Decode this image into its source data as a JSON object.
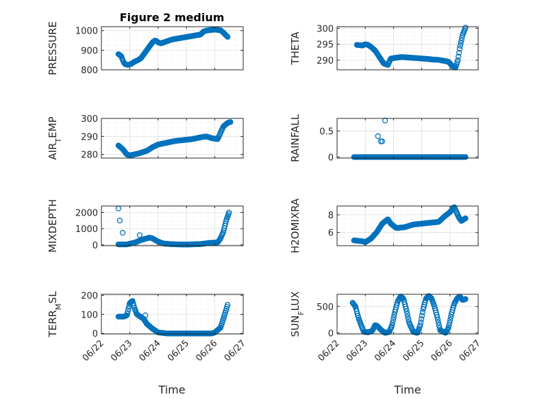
{
  "figure_title": "Figure 2 medium",
  "xlabel": "Time",
  "x_ticks": [
    "06/22",
    "06/23",
    "06/24",
    "06/25",
    "06/26",
    "06/27"
  ],
  "marker_color": "#0072bd",
  "chart_data": [
    {
      "type": "scatter",
      "ylabel": "PRESSURE",
      "ylim": [
        800,
        1020
      ],
      "y_ticks": [
        800,
        900,
        1000
      ],
      "grid": true,
      "minor_grid": true,
      "keys": [
        [
          22.6,
          880
        ],
        [
          22.7,
          870
        ],
        [
          22.75,
          850
        ],
        [
          22.8,
          835
        ],
        [
          22.85,
          828
        ],
        [
          22.95,
          825
        ],
        [
          23.05,
          830
        ],
        [
          23.15,
          840
        ],
        [
          23.3,
          850
        ],
        [
          23.4,
          860
        ],
        [
          23.5,
          880
        ],
        [
          23.6,
          900
        ],
        [
          23.7,
          920
        ],
        [
          23.8,
          940
        ],
        [
          23.9,
          950
        ],
        [
          24.0,
          940
        ],
        [
          24.1,
          935
        ],
        [
          24.3,
          945
        ],
        [
          24.5,
          955
        ],
        [
          24.7,
          960
        ],
        [
          24.9,
          965
        ],
        [
          25.1,
          970
        ],
        [
          25.3,
          975
        ],
        [
          25.5,
          980
        ],
        [
          25.6,
          995
        ],
        [
          25.7,
          1000
        ],
        [
          25.85,
          1003
        ],
        [
          26.0,
          1005
        ],
        [
          26.2,
          1002
        ],
        [
          26.3,
          990
        ],
        [
          26.4,
          975
        ],
        [
          26.45,
          968
        ]
      ]
    },
    {
      "type": "scatter",
      "ylabel": "THETA",
      "ylim": [
        287,
        300.5
      ],
      "y_ticks": [
        290,
        295,
        300
      ],
      "grid": true,
      "minor_grid": true,
      "keys": [
        [
          22.7,
          294.8
        ],
        [
          22.9,
          294.6
        ],
        [
          23.0,
          295
        ],
        [
          23.1,
          294.8
        ],
        [
          23.2,
          294.2
        ],
        [
          23.35,
          293
        ],
        [
          23.5,
          291
        ],
        [
          23.65,
          289
        ],
        [
          23.8,
          288.5
        ],
        [
          23.9,
          290.5
        ],
        [
          24.1,
          290.8
        ],
        [
          24.3,
          291.0
        ],
        [
          24.6,
          290.8
        ],
        [
          24.9,
          290.6
        ],
        [
          25.2,
          290.4
        ],
        [
          25.4,
          290.2
        ],
        [
          25.6,
          290.1
        ],
        [
          25.8,
          289.8
        ],
        [
          25.95,
          289.5
        ],
        [
          26.1,
          288.0
        ],
        [
          26.2,
          287.7
        ],
        [
          26.28,
          290
        ],
        [
          26.35,
          294
        ],
        [
          26.45,
          298
        ],
        [
          26.55,
          300.2
        ]
      ]
    },
    {
      "type": "scatter",
      "ylabel": "AIR_TEMP",
      "ylim": [
        278,
        300
      ],
      "y_ticks": [
        280,
        290,
        300
      ],
      "grid": true,
      "minor_grid": true,
      "keys": [
        [
          22.6,
          285
        ],
        [
          22.75,
          283
        ],
        [
          22.9,
          280
        ],
        [
          23.0,
          279.5
        ],
        [
          23.3,
          280.5
        ],
        [
          23.6,
          282
        ],
        [
          23.8,
          284
        ],
        [
          24.0,
          285.5
        ],
        [
          24.3,
          286.5
        ],
        [
          24.6,
          287.5
        ],
        [
          24.9,
          288
        ],
        [
          25.2,
          288.5
        ],
        [
          25.5,
          289.5
        ],
        [
          25.7,
          290
        ],
        [
          25.9,
          289
        ],
        [
          26.1,
          288.5
        ],
        [
          26.2,
          292
        ],
        [
          26.3,
          295.5
        ],
        [
          26.45,
          297.5
        ],
        [
          26.55,
          298
        ]
      ]
    },
    {
      "type": "scatter",
      "ylabel": "RAINFALL",
      "ylim": [
        -0.02,
        0.74
      ],
      "y_ticks": [
        0,
        0.5
      ],
      "grid": true,
      "minor_grid": false,
      "keys": [
        [
          22.6,
          0
        ],
        [
          26.55,
          0
        ]
      ],
      "extra_points": [
        [
          23.45,
          0.4
        ],
        [
          23.55,
          0.3
        ],
        [
          23.6,
          0.3
        ],
        [
          23.7,
          0.7
        ]
      ]
    },
    {
      "type": "scatter",
      "ylabel": "MIXDEPTH",
      "ylim": [
        -50,
        2400
      ],
      "y_ticks": [
        0,
        1000,
        2000
      ],
      "grid": true,
      "minor_grid": true,
      "keys": [
        [
          22.6,
          30
        ],
        [
          22.9,
          30
        ],
        [
          23.2,
          150
        ],
        [
          23.4,
          300
        ],
        [
          23.6,
          400
        ],
        [
          23.7,
          450
        ],
        [
          23.8,
          400
        ],
        [
          24.0,
          200
        ],
        [
          24.2,
          80
        ],
        [
          24.5,
          40
        ],
        [
          25.0,
          20
        ],
        [
          25.5,
          50
        ],
        [
          25.8,
          120
        ],
        [
          26.1,
          150
        ],
        [
          26.2,
          400
        ],
        [
          26.3,
          800
        ],
        [
          26.4,
          1500
        ],
        [
          26.5,
          2000
        ]
      ],
      "extra_points": [
        [
          22.6,
          2250
        ],
        [
          22.65,
          1500
        ],
        [
          22.75,
          750
        ],
        [
          23.35,
          600
        ],
        [
          23.5,
          350
        ]
      ]
    },
    {
      "type": "scatter",
      "ylabel": "H2OMIXRA",
      "ylim": [
        4.5,
        9
      ],
      "y_ticks": [
        6,
        8
      ],
      "grid": true,
      "minor_grid": true,
      "keys": [
        [
          22.6,
          5.1
        ],
        [
          22.9,
          5.0
        ],
        [
          23.0,
          4.9
        ],
        [
          23.2,
          5.3
        ],
        [
          23.4,
          6.0
        ],
        [
          23.6,
          7.0
        ],
        [
          23.8,
          7.5
        ],
        [
          23.9,
          7.0
        ],
        [
          24.1,
          6.5
        ],
        [
          24.4,
          6.6
        ],
        [
          24.7,
          6.9
        ],
        [
          25.0,
          7.0
        ],
        [
          25.3,
          7.1
        ],
        [
          25.6,
          7.2
        ],
        [
          25.8,
          7.8
        ],
        [
          26.0,
          8.3
        ],
        [
          26.15,
          8.9
        ],
        [
          26.3,
          7.8
        ],
        [
          26.4,
          7.3
        ],
        [
          26.55,
          7.6
        ]
      ]
    },
    {
      "type": "scatter",
      "ylabel": "TERR_MSL",
      "ylim": [
        -3,
        205
      ],
      "y_ticks": [
        0,
        100,
        200
      ],
      "grid": true,
      "minor_grid": true,
      "keys": [
        [
          22.6,
          88
        ],
        [
          22.8,
          88
        ],
        [
          22.9,
          95
        ],
        [
          23.0,
          160
        ],
        [
          23.1,
          170
        ],
        [
          23.15,
          140
        ],
        [
          23.25,
          100
        ],
        [
          23.4,
          85
        ],
        [
          23.5,
          75
        ],
        [
          23.6,
          50
        ],
        [
          23.8,
          25
        ],
        [
          24.0,
          5
        ],
        [
          24.3,
          0
        ],
        [
          25.0,
          0
        ],
        [
          25.9,
          0
        ],
        [
          26.0,
          5
        ],
        [
          26.2,
          30
        ],
        [
          26.35,
          100
        ],
        [
          26.45,
          150
        ]
      ],
      "extra_points": [
        [
          23.55,
          95
        ]
      ]
    },
    {
      "type": "scatter",
      "ylabel": "SUN_FLUX",
      "ylim": [
        -20,
        730
      ],
      "y_ticks": [
        0,
        500
      ],
      "grid": true,
      "minor_grid": true,
      "keys": [
        [
          22.55,
          570
        ],
        [
          22.65,
          500
        ],
        [
          22.75,
          300
        ],
        [
          22.85,
          150
        ],
        [
          22.95,
          20
        ],
        [
          23.1,
          10
        ],
        [
          23.25,
          40
        ],
        [
          23.35,
          150
        ],
        [
          23.45,
          120
        ],
        [
          23.55,
          60
        ],
        [
          23.7,
          0
        ],
        [
          23.85,
          20
        ],
        [
          23.95,
          150
        ],
        [
          24.05,
          400
        ],
        [
          24.15,
          600
        ],
        [
          24.25,
          690
        ],
        [
          24.35,
          650
        ],
        [
          24.45,
          450
        ],
        [
          24.55,
          200
        ],
        [
          24.7,
          20
        ],
        [
          24.85,
          0
        ],
        [
          24.95,
          150
        ],
        [
          25.05,
          450
        ],
        [
          25.15,
          650
        ],
        [
          25.25,
          700
        ],
        [
          25.35,
          650
        ],
        [
          25.45,
          500
        ],
        [
          25.55,
          300
        ],
        [
          25.65,
          50
        ],
        [
          25.85,
          0
        ],
        [
          25.95,
          100
        ],
        [
          26.05,
          350
        ],
        [
          26.15,
          550
        ],
        [
          26.25,
          650
        ],
        [
          26.35,
          690
        ],
        [
          26.45,
          620
        ],
        [
          26.55,
          640
        ]
      ]
    }
  ]
}
